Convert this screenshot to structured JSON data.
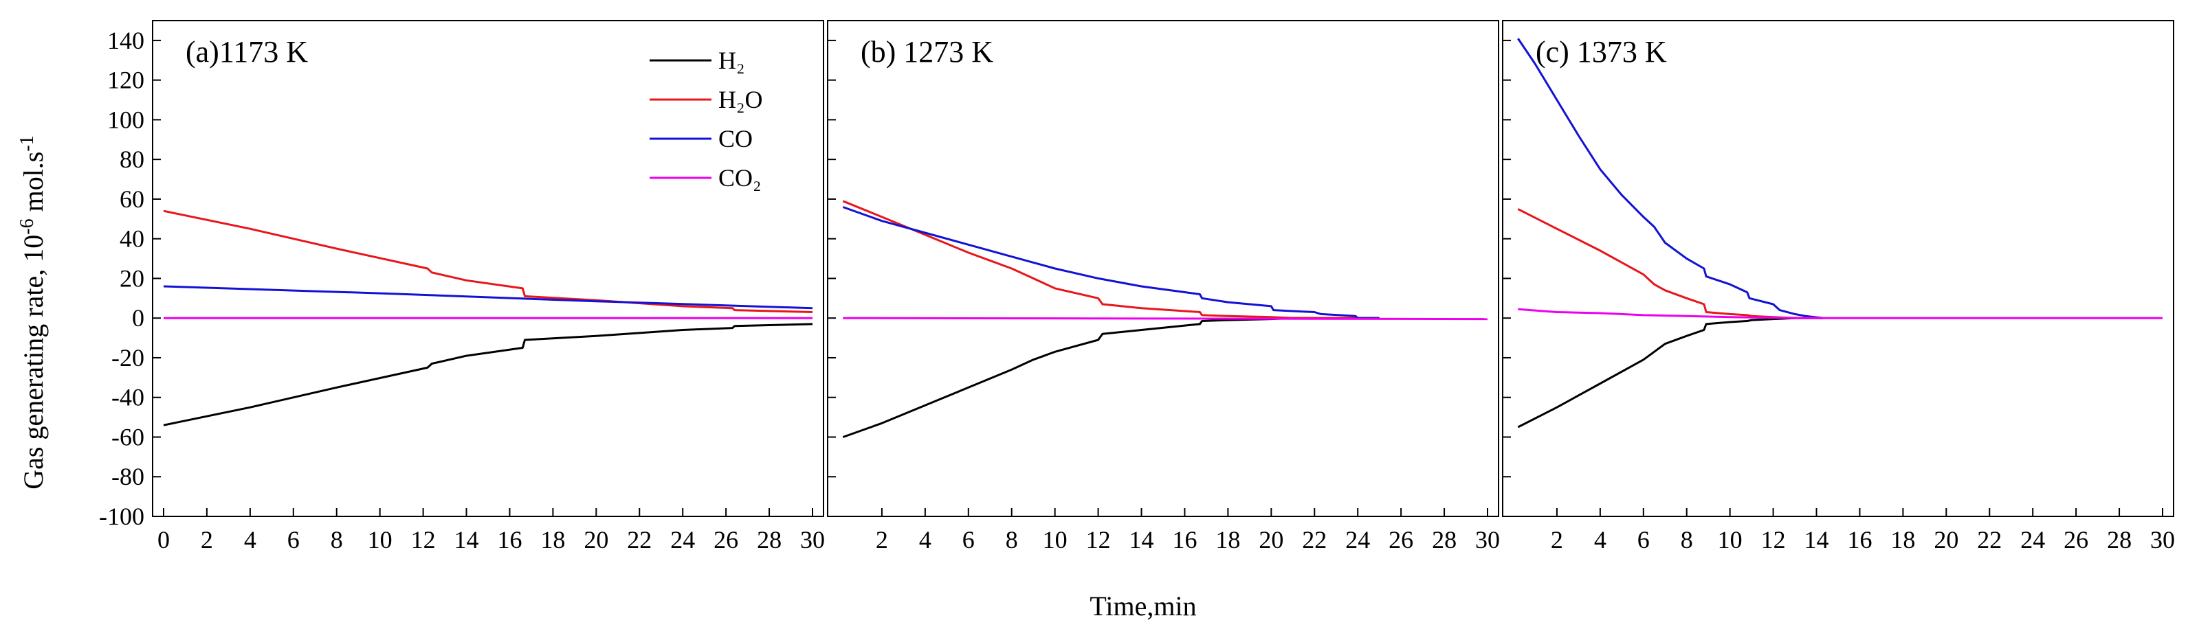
{
  "figure": {
    "ylabel": "Gas generating rate, 10",
    "ylabel_exp": "-6",
    "ylabel_unit": " mol.s",
    "ylabel_unit_exp": "-1",
    "xlabel": "Time,min"
  },
  "legend": [
    {
      "name": "H₂",
      "color": "#000000"
    },
    {
      "name": "H₂O",
      "color": "#e8151a"
    },
    {
      "name": "CO",
      "color": "#1212d6"
    },
    {
      "name": "CO₂",
      "color": "#ee00ee"
    }
  ],
  "chart_data": [
    {
      "type": "line",
      "title": "(a)1173 K",
      "xlabel": "Time,min",
      "ylabel": "Gas generating rate, 10-6 mol.s-1",
      "xlim": [
        0,
        30
      ],
      "ylim": [
        -100,
        150
      ],
      "xticks": [
        0,
        2,
        4,
        6,
        8,
        10,
        12,
        14,
        16,
        18,
        20,
        22,
        24,
        26,
        28,
        30
      ],
      "yticks": [
        -100,
        -80,
        -60,
        -40,
        -20,
        0,
        20,
        40,
        60,
        80,
        100,
        120,
        140
      ],
      "series": [
        {
          "name": "H₂",
          "x": [
            0,
            4,
            8,
            12.2,
            12.4,
            14,
            16.6,
            16.7,
            20,
            24,
            26.3,
            26.4,
            30
          ],
          "y": [
            -54,
            -45,
            -35,
            -25,
            -23,
            -19,
            -15,
            -11,
            -9,
            -6,
            -5,
            -4,
            -3
          ]
        },
        {
          "name": "H₂O",
          "x": [
            0,
            4,
            8,
            12.2,
            12.4,
            14,
            16.6,
            16.7,
            20,
            24,
            26.3,
            26.4,
            30
          ],
          "y": [
            54,
            45,
            35,
            25,
            23,
            19,
            15,
            11,
            9,
            6,
            5,
            4,
            3
          ]
        },
        {
          "name": "CO",
          "x": [
            0,
            10,
            20,
            30
          ],
          "y": [
            16,
            12.5,
            8.5,
            5
          ]
        },
        {
          "name": "CO₂",
          "x": [
            0,
            30
          ],
          "y": [
            0,
            0
          ]
        }
      ]
    },
    {
      "type": "line",
      "title": "(b) 1273 K",
      "xlabel": "Time,min",
      "ylabel": "Gas generating rate, 10-6 mol.s-1",
      "xlim": [
        0,
        30
      ],
      "ylim": [
        -100,
        150
      ],
      "xticks": [
        2,
        4,
        6,
        8,
        10,
        12,
        14,
        16,
        18,
        20,
        22,
        24,
        26,
        28,
        30
      ],
      "yticks": [
        -100,
        -80,
        -60,
        -40,
        -20,
        0,
        20,
        40,
        60,
        80,
        100,
        120,
        140
      ],
      "series": [
        {
          "name": "H₂",
          "x": [
            0.2,
            2,
            4,
            6,
            8,
            9,
            10,
            12,
            12.2,
            14,
            16.7,
            16.8,
            18,
            20,
            21,
            22,
            24,
            25
          ],
          "y": [
            -60,
            -53,
            -44,
            -35,
            -26,
            -21,
            -17,
            -11,
            -8,
            -6,
            -3,
            -1.5,
            -1,
            -0.5,
            0,
            0,
            0,
            0
          ]
        },
        {
          "name": "H₂O",
          "x": [
            0.2,
            2,
            4,
            6,
            8,
            9,
            10,
            12,
            12.2,
            14,
            16.7,
            16.8,
            18,
            20,
            21,
            22,
            24,
            25
          ],
          "y": [
            59,
            51,
            42,
            33,
            25,
            20,
            15,
            10,
            7,
            5,
            3,
            1.5,
            1,
            0.5,
            0,
            0,
            0,
            0
          ]
        },
        {
          "name": "CO",
          "x": [
            0.2,
            2,
            4,
            6,
            8,
            10,
            12,
            14,
            16.7,
            16.8,
            18,
            20,
            20.1,
            22,
            22.3,
            23.9,
            24,
            25
          ],
          "y": [
            56,
            49,
            43,
            37,
            31,
            25,
            20,
            16,
            12,
            10,
            8,
            6,
            4,
            3,
            2,
            1,
            0,
            0
          ]
        },
        {
          "name": "CO₂",
          "x": [
            0.2,
            30
          ],
          "y": [
            0,
            -0.5
          ]
        }
      ]
    },
    {
      "type": "line",
      "title": "(c) 1373 K",
      "xlabel": "Time,min",
      "ylabel": "Gas generating rate, 10-6 mol.s-1",
      "xlim": [
        0,
        30
      ],
      "ylim": [
        -100,
        150
      ],
      "xticks": [
        2,
        4,
        6,
        8,
        10,
        12,
        14,
        16,
        18,
        20,
        22,
        24,
        26,
        28,
        30
      ],
      "yticks": [
        -100,
        -80,
        -60,
        -40,
        -20,
        0,
        20,
        40,
        60,
        80,
        100,
        120,
        140
      ],
      "series": [
        {
          "name": "H₂",
          "x": [
            0.2,
            2,
            4,
            6,
            6.5,
            7,
            8,
            8.8,
            8.9,
            10,
            10.8,
            11,
            12,
            13,
            14.3
          ],
          "y": [
            -55,
            -45,
            -33,
            -21,
            -17,
            -13,
            -9,
            -6,
            -3,
            -2,
            -1.5,
            -1,
            -0.5,
            0,
            0
          ]
        },
        {
          "name": "H₂O",
          "x": [
            0.2,
            2,
            4,
            6,
            6.5,
            7,
            8,
            8.8,
            8.9,
            10,
            10.8,
            11,
            12,
            13,
            14.3
          ],
          "y": [
            55,
            45,
            34,
            22,
            17,
            14,
            10,
            7,
            3,
            2,
            1.5,
            1,
            0.5,
            0,
            0
          ]
        },
        {
          "name": "CO",
          "x": [
            0.2,
            1,
            2,
            3,
            4,
            5,
            6,
            6.5,
            7,
            8,
            8.8,
            8.9,
            10,
            10.8,
            10.9,
            12,
            12.3,
            13,
            13.5,
            14.3
          ],
          "y": [
            141,
            128,
            110,
            92,
            75,
            62,
            51,
            46,
            38,
            30,
            25,
            21,
            17,
            13,
            10,
            7,
            4,
            2,
            1,
            0
          ]
        },
        {
          "name": "CO₂",
          "x": [
            0.2,
            2,
            4,
            6,
            8,
            10,
            12,
            14,
            30
          ],
          "y": [
            4.5,
            3,
            2.5,
            1.5,
            1,
            0.5,
            0.2,
            0,
            0
          ]
        }
      ]
    }
  ]
}
